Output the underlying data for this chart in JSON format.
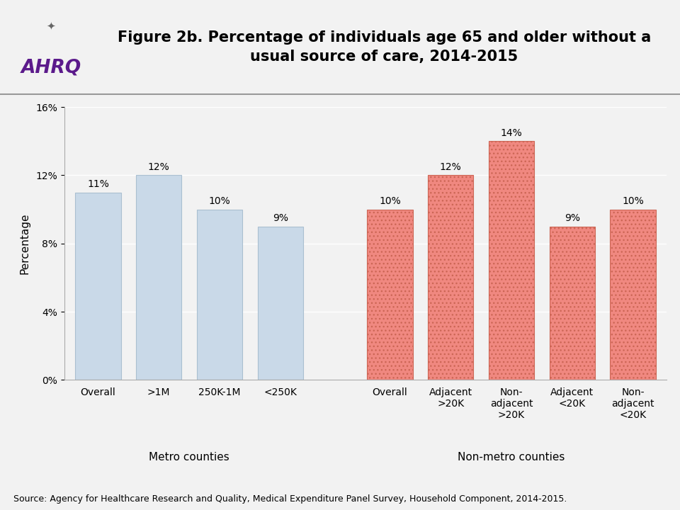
{
  "title": "Figure 2b. Percentage of individuals age 65 and older without a\nusual source of care, 2014-2015",
  "ylabel": "Percentage",
  "source_text": "Source: Agency for Healthcare Research and Quality, Medical Expenditure Panel Survey, Household Component, 2014-2015.",
  "metro_label": "Metro counties",
  "nonmetro_label": "Non-metro counties",
  "categories": [
    "Overall",
    ">1M",
    "250K-1M",
    "<250K",
    "Overall",
    "Adjacent\n>20K",
    "Non-\nadjacent\n>20K",
    "Adjacent\n<20K",
    "Non-\nadjacent\n<20K"
  ],
  "values": [
    11,
    12,
    10,
    9,
    10,
    12,
    14,
    9,
    10
  ],
  "bar_colors_metro": "#c9d9e8",
  "bar_colors_nonmetro": "#f08880",
  "bar_edge_metro": "#aabfd0",
  "bar_edge_nonmetro": "#cc6655",
  "ylim": [
    0,
    16
  ],
  "yticks": [
    0,
    4,
    8,
    12,
    16
  ],
  "ytick_labels": [
    "0%",
    "4%",
    "8%",
    "12%",
    "16%"
  ],
  "title_fontsize": 15,
  "axis_fontsize": 11,
  "tick_fontsize": 10,
  "bar_label_fontsize": 10,
  "source_fontsize": 9,
  "header_bg_color": "#d8d8d8",
  "plot_bg_color": "#f2f2f2",
  "figure_bg_color": "#f2f2f2",
  "x_positions": [
    0,
    1,
    2,
    3,
    4.8,
    5.8,
    6.8,
    7.8,
    8.8
  ],
  "metro_group": [
    0,
    1,
    2,
    3
  ],
  "nonmetro_group": [
    4,
    5,
    6,
    7,
    8
  ]
}
